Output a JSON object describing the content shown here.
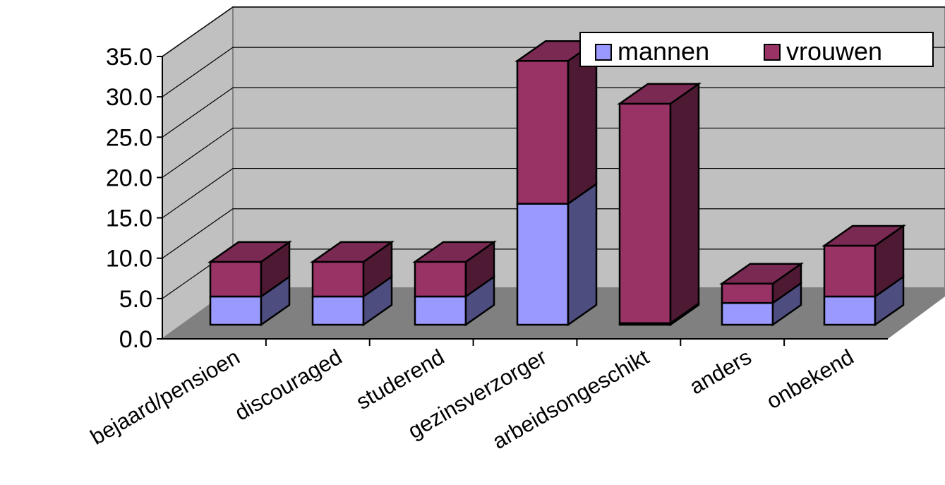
{
  "colors": {
    "mannen_front": "#9999ff",
    "mannen_side": "#4d4d80",
    "vrouwen_front": "#993366",
    "vrouwen_side": "#4d1933",
    "vrouwen_top": "#7a2952",
    "mannen_top": "#7a7acc",
    "wall": "#c0c0c0",
    "floor": "#808080"
  },
  "chart_data": {
    "type": "bar",
    "stacked": true,
    "three_d": true,
    "categories": [
      "bejaard/pensioen",
      "discouraged",
      "studerend",
      "gezinsverzorger",
      "arbeidsongeschikt",
      "anders",
      "onbekend"
    ],
    "series": [
      {
        "name": "mannen",
        "values": [
          3.5,
          3.5,
          3.5,
          15.0,
          0.2,
          2.7,
          3.5
        ]
      },
      {
        "name": "vrouwen",
        "values": [
          4.3,
          4.3,
          4.3,
          17.7,
          27.2,
          2.4,
          6.3
        ]
      }
    ],
    "ylim": [
      0,
      35
    ],
    "yticks": [
      "0.0",
      "5.0",
      "10.0",
      "15.0",
      "20.0",
      "25.0",
      "30.0",
      "35.0"
    ],
    "grid": true,
    "legend": "top-right"
  }
}
